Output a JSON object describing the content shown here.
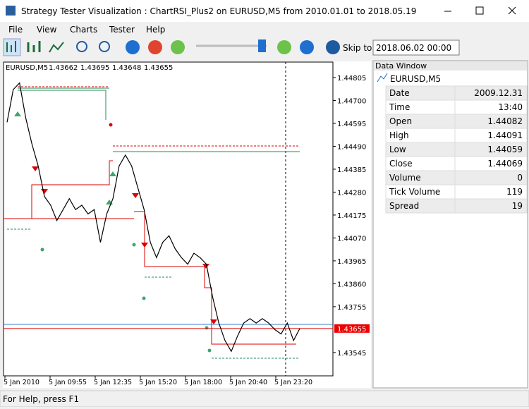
{
  "window": {
    "title": "Strategy Tester Visualization : ChartRSI_Plus2 on EURUSD,M5 from 2010.01.01 to 2018.05.19"
  },
  "menu": [
    "File",
    "View",
    "Charts",
    "Tester",
    "Help"
  ],
  "toolbar": {
    "skip_label": "Skip to",
    "skip_date": "2018.06.02 00:00"
  },
  "chart_data": {
    "type": "line",
    "header": "EURUSD,M5",
    "ohlc": [
      "1.43662",
      "1.43695",
      "1.43648",
      "1.43655"
    ],
    "ylim": [
      1.43438,
      1.44876
    ],
    "yticks": [
      1.44805,
      {
        "value": 1.447,
        "label": "1.44700"
      },
      1.44595,
      {
        "value": 1.4449,
        "label": "1.44490"
      },
      1.44385,
      {
        "value": 1.4428,
        "label": "1.44280"
      },
      1.44175,
      {
        "value": 1.4407,
        "label": "1.44070"
      },
      1.43965,
      {
        "value": 1.4386,
        "label": "1.43860"
      },
      1.43755,
      1.43545
    ],
    "current_price": {
      "value": 1.43655,
      "label": "1.43655"
    },
    "time_labels": [
      "5 Jan 2010",
      "5 Jan 09:55",
      "5 Jan 12:35",
      "5 Jan 15:20",
      "5 Jan 18:00",
      "5 Jan 20:40",
      "5 Jan 23:20"
    ],
    "values": [
      1.446,
      1.4475,
      1.4478,
      1.4462,
      1.445,
      1.444,
      1.4426,
      1.4422,
      1.4415,
      1.442,
      1.4425,
      1.442,
      1.4422,
      1.4418,
      1.442,
      1.4405,
      1.4418,
      1.4425,
      1.444,
      1.4445,
      1.444,
      1.443,
      1.442,
      1.4405,
      1.4398,
      1.4405,
      1.4408,
      1.4402,
      1.4398,
      1.4395,
      1.44,
      1.4398,
      1.4395,
      1.438,
      1.4368,
      1.436,
      1.4355,
      1.4362,
      1.4368,
      1.437,
      1.4368,
      1.437,
      1.4368,
      1.4365,
      1.4363,
      1.4368,
      1.436,
      1.43655
    ]
  },
  "data_window": {
    "title": "Data Window",
    "symbol": "EURUSD,M5",
    "rows": [
      [
        "Date",
        "2009.12.31"
      ],
      [
        "Time",
        "13:40"
      ],
      [
        "Open",
        "1.44082"
      ],
      [
        "High",
        "1.44091"
      ],
      [
        "Low",
        "1.44059"
      ],
      [
        "Close",
        "1.44069"
      ],
      [
        "Volume",
        "0"
      ],
      [
        "Tick Volume",
        "119"
      ],
      [
        "Spread",
        "19"
      ]
    ]
  },
  "status": "For Help, press F1"
}
